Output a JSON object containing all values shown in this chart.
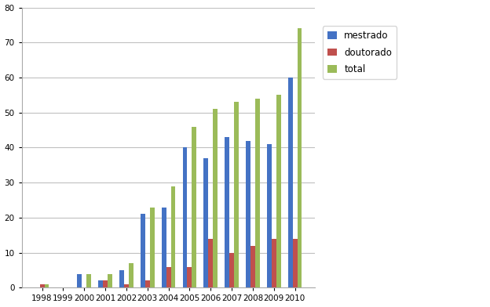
{
  "years": [
    "1998",
    "1999",
    "2000",
    "2001",
    "2002",
    "2003",
    "2004",
    "2005",
    "2006",
    "2007",
    "2008",
    "2009",
    "2010"
  ],
  "mestrado": [
    0,
    0,
    4,
    2,
    5,
    21,
    23,
    40,
    37,
    43,
    42,
    41,
    60
  ],
  "doutorado": [
    1,
    0,
    0,
    2,
    1,
    2,
    6,
    6,
    14,
    10,
    12,
    14,
    14
  ],
  "total": [
    1,
    0,
    4,
    4,
    7,
    23,
    29,
    46,
    51,
    53,
    54,
    55,
    74
  ],
  "color_mestrado": "#4472C4",
  "color_doutorado": "#C0504D",
  "color_total": "#9BBB59",
  "ylim": [
    0,
    80
  ],
  "yticks": [
    0,
    10,
    20,
    30,
    40,
    50,
    60,
    70,
    80
  ],
  "legend_labels": [
    "mestrado",
    "doutorado",
    "total"
  ],
  "bar_width": 0.22,
  "background_color": "#FFFFFF",
  "plot_bg_color": "#FFFFFF",
  "grid_color": "#C0C0C0",
  "figure_width": 6.24,
  "figure_height": 3.92
}
